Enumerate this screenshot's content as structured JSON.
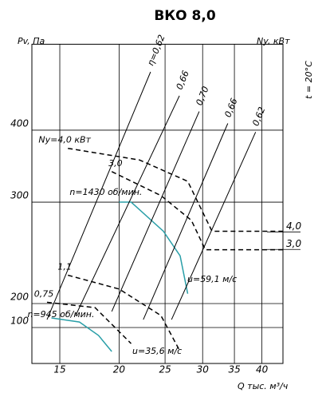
{
  "chart_data": {
    "type": "line",
    "title": "ВКО 8,0",
    "y_label": "Pv, Па",
    "y2_label": "Ny, кВт",
    "x_label": "Q тыс. м³/ч",
    "temperature_label": "t = 20°C",
    "xscale": "log",
    "xlim": [
      13.1,
      44.3
    ],
    "xticks": [
      15,
      20,
      25,
      30,
      35,
      40
    ],
    "ylim": [
      -50,
      564
    ],
    "yticks": [
      100,
      200,
      300,
      400
    ],
    "y2lim": [
      -3.5,
      14.7
    ],
    "y2ticks": [
      {
        "value": 4,
        "label": "4,0"
      },
      {
        "value": 3,
        "label": "3,0"
      }
    ],
    "grid": true,
    "series": [
      {
        "name": "n=1430 об/мин.",
        "kind": "fan",
        "color": "#2a9fa8",
        "x": [
          20.0,
          21.2,
          24.8,
          26.9,
          27.9
        ],
        "values": [
          300,
          300,
          267,
          242,
          208
        ]
      },
      {
        "name": "n=945 об/мин.",
        "kind": "fan",
        "color": "#2a9fa8",
        "x": [
          14.4,
          16.5,
          18.1,
          19.3
        ],
        "values": [
          140,
          123,
          67,
          0
        ]
      },
      {
        "name": "Ny=4,0 кВт",
        "kind": "power",
        "color": "#000000",
        "x": [
          15.6,
          22.1,
          27.9,
          31.4,
          44.3
        ],
        "values": [
          372,
          355,
          326,
          267,
          267
        ]
      },
      {
        "name": "3,0",
        "kind": "power",
        "color": "#000000",
        "x": [
          19.3,
          24.5,
          28.4,
          30.4,
          44.3
        ],
        "values": [
          339,
          308,
          279,
          248,
          248
        ]
      },
      {
        "name": "1,1",
        "kind": "power",
        "color": "#000000",
        "x": [
          15.6,
          20.0,
          24.5,
          26.9
        ],
        "values": [
          224,
          212,
          150,
          0
        ]
      },
      {
        "name": "0,75",
        "kind": "power",
        "color": "#000000",
        "x": [
          14.1,
          17.8,
          21.2
        ],
        "values": [
          201,
          183,
          33
        ]
      },
      {
        "name": "η=0,62",
        "kind": "efficiency",
        "color": "#000000",
        "x": [
          14.1,
          23.3
        ],
        "values": [
          133,
          505
        ]
      },
      {
        "name": "0,66",
        "kind": "efficiency",
        "color": "#000000",
        "x": [
          16.2,
          26.8
        ],
        "values": [
          150,
          459
        ]
      },
      {
        "name": "0,70",
        "kind": "efficiency",
        "color": "#000000",
        "x": [
          19.3,
          29.5
        ],
        "values": [
          167,
          431
        ]
      },
      {
        "name": "0,66",
        "kind": "efficiency",
        "color": "#000000",
        "x": [
          22.5,
          33.9
        ],
        "values": [
          133,
          411
        ]
      },
      {
        "name": "0,62",
        "kind": "efficiency",
        "color": "#000000",
        "x": [
          25.8,
          38.8
        ],
        "values": [
          133,
          397
        ]
      }
    ],
    "annotations": [
      "u=59,1 м/с",
      "u=35,6 м/с"
    ]
  }
}
